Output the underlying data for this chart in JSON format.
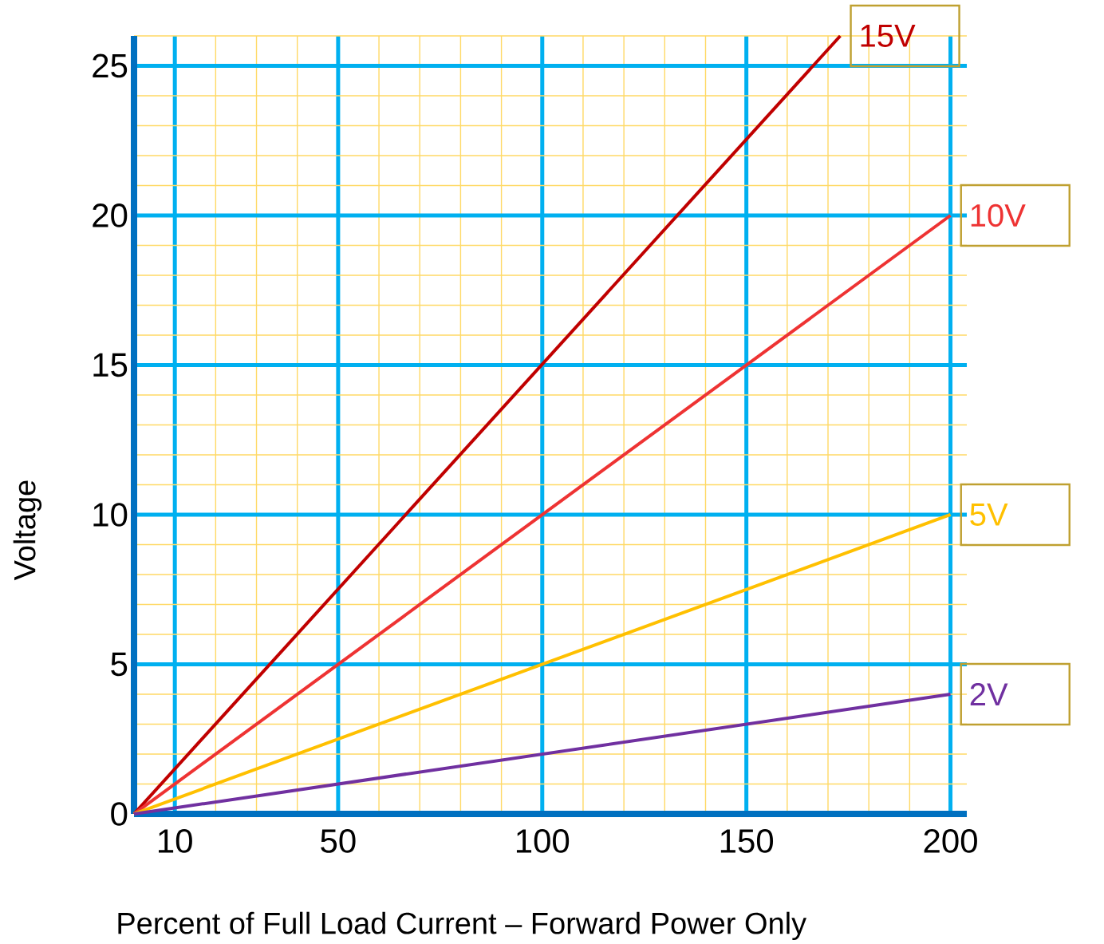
{
  "chart_data": {
    "type": "line",
    "xlabel": "Percent of Full Load Current – Forward Power Only",
    "ylabel": "Voltage",
    "xlim": [
      0,
      204
    ],
    "ylim": [
      0,
      26
    ],
    "xticks": [
      10,
      50,
      100,
      150,
      200
    ],
    "yticks": [
      0,
      5,
      10,
      15,
      20,
      25
    ],
    "grid": true,
    "legend": false,
    "marker": "none",
    "line_style": "solid",
    "series": [
      {
        "name": "15V",
        "color": "#c00000",
        "x": [
          0,
          173
        ],
        "values": [
          0,
          26
        ]
      },
      {
        "name": "10V",
        "color": "#ee3333",
        "x": [
          0,
          200
        ],
        "values": [
          0,
          20
        ]
      },
      {
        "name": "5V",
        "color": "#ffc000",
        "x": [
          0,
          200
        ],
        "values": [
          0,
          10
        ]
      },
      {
        "name": "2V",
        "color": "#7030a0",
        "x": [
          0,
          200
        ],
        "values": [
          0,
          4
        ]
      }
    ]
  }
}
